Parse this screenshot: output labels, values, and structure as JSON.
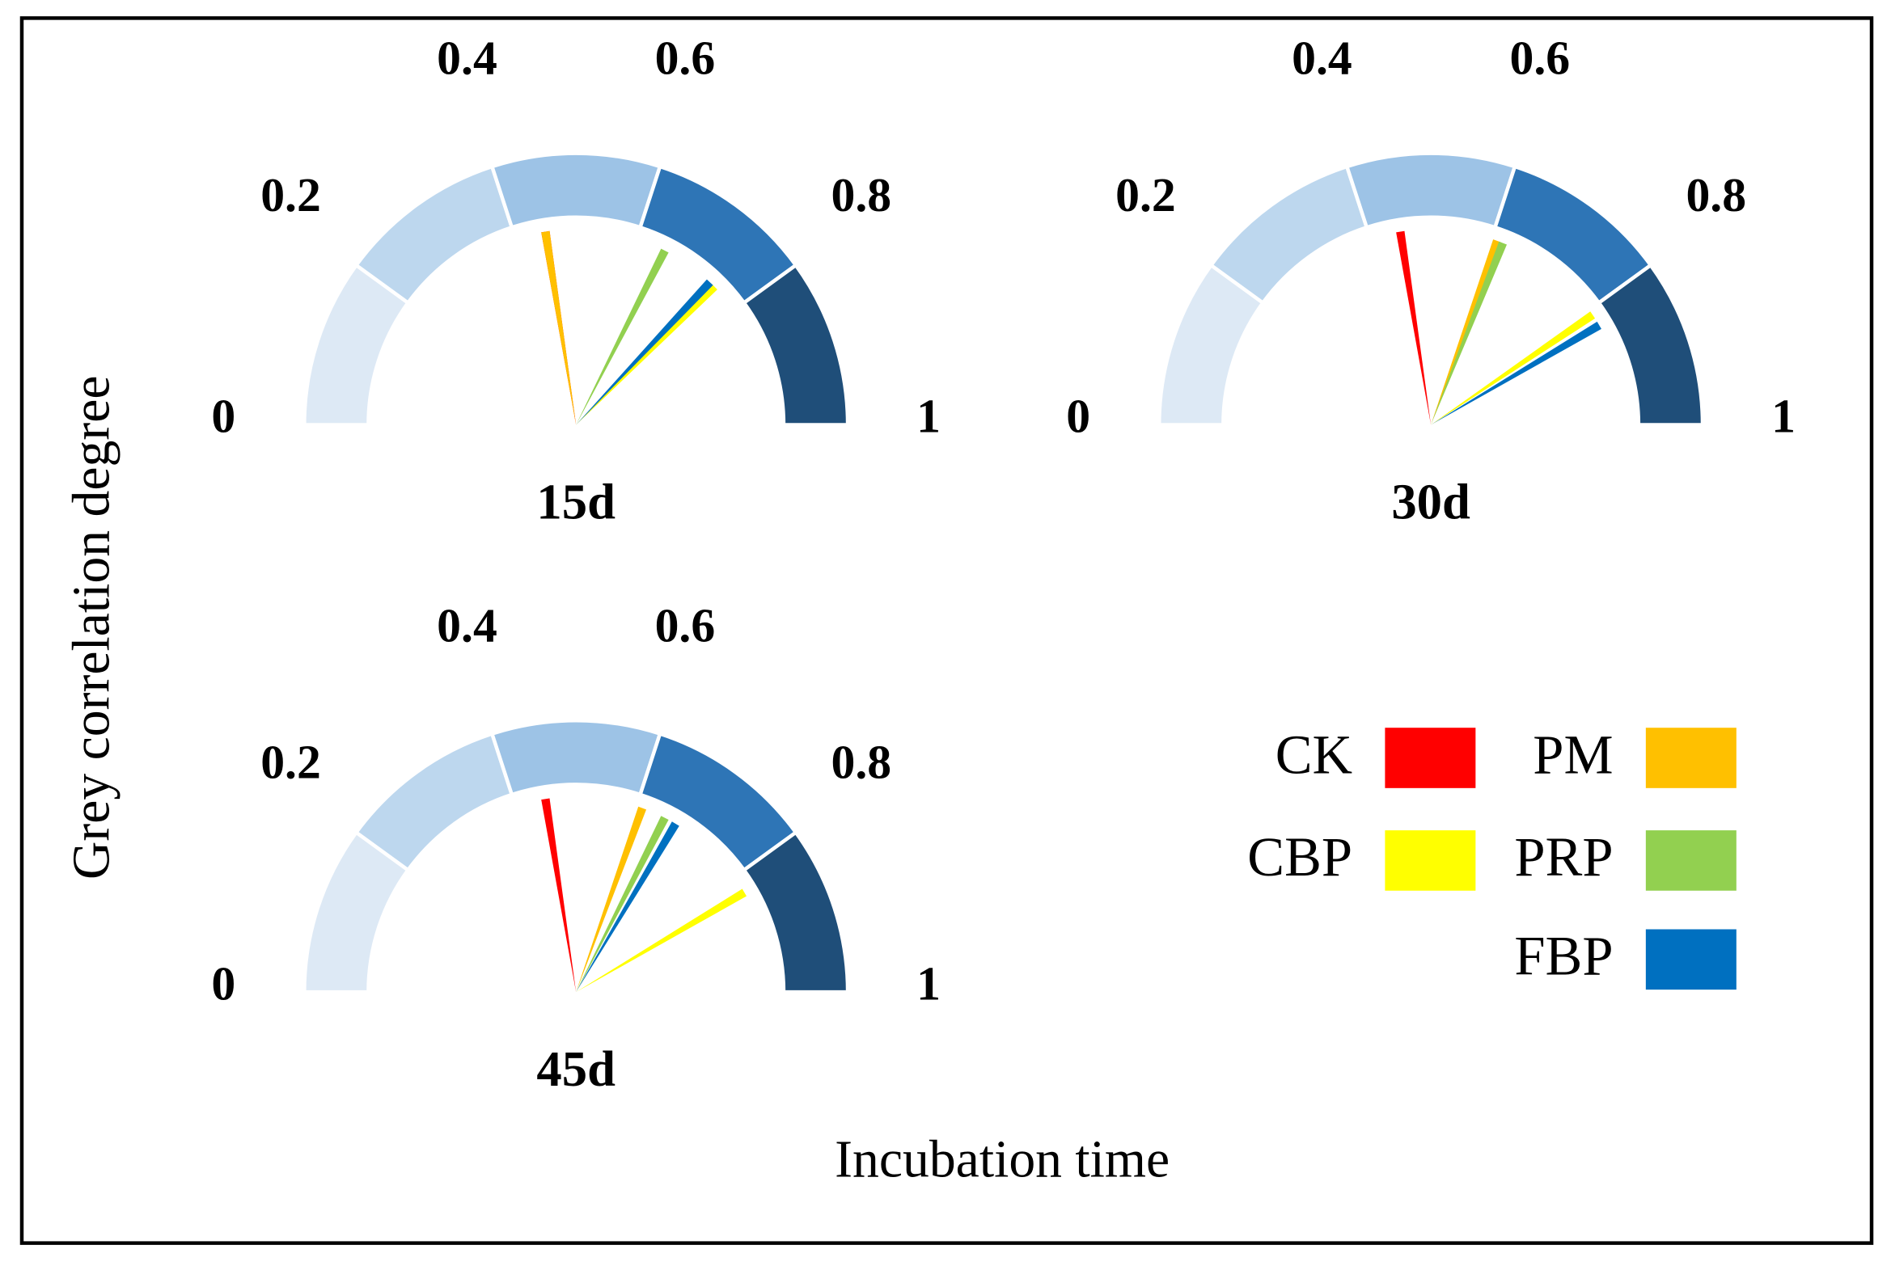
{
  "x_label": "Incubation time",
  "y_label": "Grey correlation degree",
  "chart_data": [
    {
      "type": "gauge",
      "title": "15d",
      "ylim": [
        0,
        1
      ],
      "yticks": [
        0,
        0.2,
        0.4,
        0.6,
        0.8,
        1
      ],
      "band_colors": [
        "#dde9f5",
        "#bdd7ee",
        "#9dc3e6",
        "#2e75b6",
        "#1f4e79"
      ],
      "series": [
        {
          "name": "CK",
          "color": "#ff0000",
          "values": [
            0.45
          ]
        },
        {
          "name": "PM",
          "color": "#ffc000",
          "values": [
            0.45
          ]
        },
        {
          "name": "CBP",
          "color": "#ffff00",
          "values": [
            0.75
          ]
        },
        {
          "name": "PRP",
          "color": "#92d050",
          "values": [
            0.65
          ]
        },
        {
          "name": "FBP",
          "color": "#0070c0",
          "values": [
            0.74
          ]
        }
      ]
    },
    {
      "type": "gauge",
      "title": "30d",
      "ylim": [
        0,
        1
      ],
      "yticks": [
        0,
        0.2,
        0.4,
        0.6,
        0.8,
        1
      ],
      "band_colors": [
        "#dde9f5",
        "#bdd7ee",
        "#9dc3e6",
        "#2e75b6",
        "#1f4e79"
      ],
      "series": [
        {
          "name": "CK",
          "color": "#ff0000",
          "values": [
            0.45
          ]
        },
        {
          "name": "PM",
          "color": "#ffc000",
          "values": [
            0.61
          ]
        },
        {
          "name": "CBP",
          "color": "#ffff00",
          "values": [
            0.81
          ]
        },
        {
          "name": "PRP",
          "color": "#92d050",
          "values": [
            0.62
          ]
        },
        {
          "name": "FBP",
          "color": "#0070c0",
          "values": [
            0.83
          ]
        }
      ]
    },
    {
      "type": "gauge",
      "title": "45d",
      "ylim": [
        0,
        1
      ],
      "yticks": [
        0,
        0.2,
        0.4,
        0.6,
        0.8,
        1
      ],
      "band_colors": [
        "#dde9f5",
        "#bdd7ee",
        "#9dc3e6",
        "#2e75b6",
        "#1f4e79"
      ],
      "series": [
        {
          "name": "CK",
          "color": "#ff0000",
          "values": [
            0.45
          ]
        },
        {
          "name": "PM",
          "color": "#ffc000",
          "values": [
            0.61
          ]
        },
        {
          "name": "CBP",
          "color": "#ffff00",
          "values": [
            0.83
          ]
        },
        {
          "name": "PRP",
          "color": "#92d050",
          "values": [
            0.65
          ]
        },
        {
          "name": "FBP",
          "color": "#0070c0",
          "values": [
            0.67
          ]
        }
      ]
    }
  ]
}
